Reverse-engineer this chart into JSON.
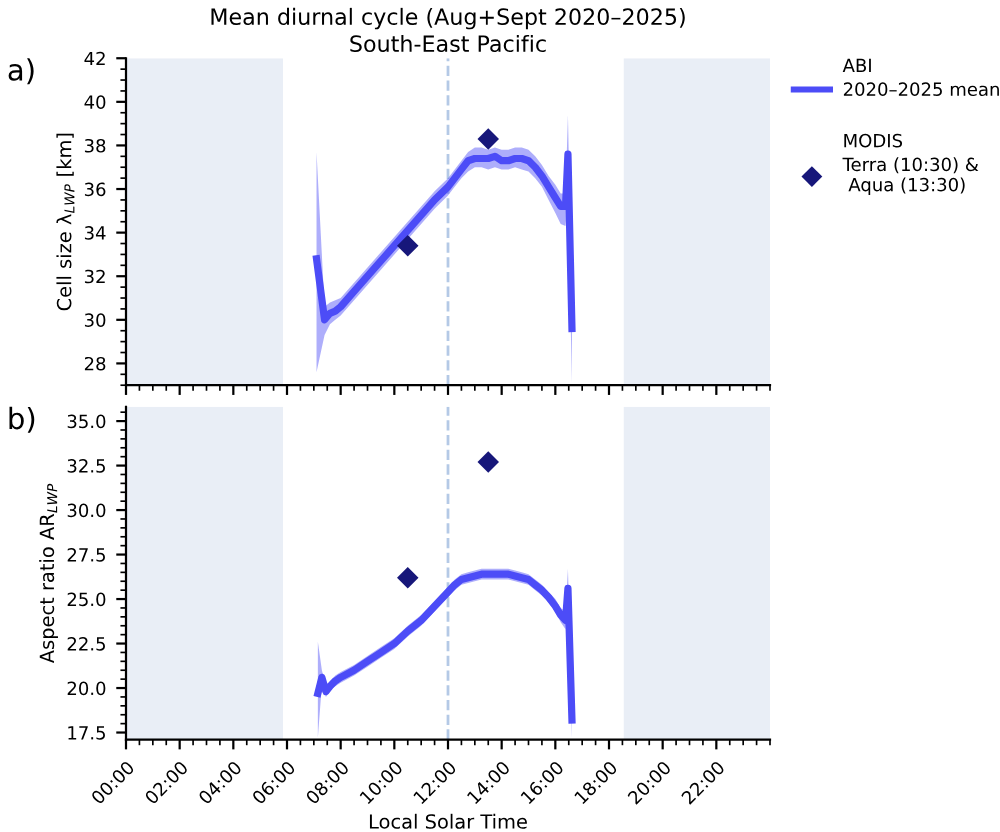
{
  "chart_data": [
    {
      "type": "line",
      "title": "Mean diurnal cycle (Aug+Sept 2020–2025)",
      "subtitle": "South-East Pacific",
      "ylabel": "Cell size λ$_{LWP}$ [km]",
      "annotations": [
        "a)",
        "ABI",
        "MODIS"
      ],
      "xlim": [
        0,
        24
      ],
      "xticks": [
        {
          "value": 0,
          "label": null
        },
        {
          "value": 2,
          "label": null
        },
        {
          "value": 4,
          "label": null
        },
        {
          "value": 6,
          "label": null
        },
        {
          "value": 8,
          "label": null
        },
        {
          "value": 10,
          "label": null
        },
        {
          "value": 12,
          "label": null
        },
        {
          "value": 14,
          "label": null
        },
        {
          "value": 16,
          "label": null
        },
        {
          "value": 18,
          "label": null
        },
        {
          "value": 20,
          "label": null
        },
        {
          "value": 22,
          "label": null
        }
      ],
      "ylim": [
        27,
        42
      ],
      "yticks": [
        28,
        30,
        32,
        34,
        36,
        38,
        40,
        42
      ],
      "tick_labels": "y",
      "legend": "right",
      "bands": [
        {
          "axis": "x",
          "from": 0,
          "to": 5.85,
          "color": "#e9eef6"
        },
        {
          "axis": "x",
          "from": 18.55,
          "to": 24,
          "color": "#e9eef6"
        }
      ],
      "ref_lines": [
        {
          "axis": "x",
          "value": 12,
          "color": "#b4c9e6",
          "line_style": "dashed"
        }
      ],
      "series": [
        {
          "name": "2020–2025 mean",
          "color": "#4c4cf7",
          "x": [
            7.1,
            7.4,
            7.6,
            7.8,
            8.0,
            8.5,
            9.0,
            9.5,
            10.0,
            10.5,
            11.0,
            11.5,
            12.0,
            12.25,
            12.5,
            12.75,
            13.0,
            13.25,
            13.5,
            13.75,
            14.0,
            14.25,
            14.5,
            14.75,
            15.0,
            15.25,
            15.5,
            15.75,
            16.0,
            16.2,
            16.38,
            16.47,
            16.62
          ],
          "values": [
            32.8,
            30.0,
            30.3,
            30.4,
            30.6,
            31.3,
            32.0,
            32.7,
            33.4,
            34.1,
            34.8,
            35.5,
            36.1,
            36.5,
            36.9,
            37.3,
            37.4,
            37.4,
            37.4,
            37.5,
            37.3,
            37.3,
            37.4,
            37.4,
            37.3,
            37.0,
            36.6,
            36.1,
            35.6,
            35.2,
            35.2,
            37.6,
            29.6
          ],
          "lower": [
            27.6,
            29.3,
            29.8,
            30.0,
            30.2,
            30.9,
            31.6,
            32.3,
            33.0,
            33.7,
            34.4,
            35.1,
            35.7,
            36.1,
            36.5,
            36.8,
            37.0,
            37.0,
            36.9,
            37.0,
            36.9,
            36.9,
            37.0,
            36.9,
            36.8,
            36.5,
            36.1,
            35.5,
            34.9,
            34.4,
            34.3,
            35.5,
            27.1
          ],
          "upper": [
            37.7,
            30.6,
            30.8,
            30.9,
            31.0,
            31.7,
            32.4,
            33.1,
            33.8,
            34.5,
            35.2,
            35.9,
            36.5,
            36.9,
            37.3,
            37.7,
            37.9,
            37.9,
            37.8,
            37.9,
            37.8,
            37.8,
            37.9,
            37.9,
            37.8,
            37.5,
            37.1,
            36.6,
            36.2,
            35.8,
            35.8,
            39.4,
            30.2
          ]
        },
        {
          "name": "Terra (10:30) &\n Aqua (13:30)",
          "type": "scatter",
          "color": "#17177a",
          "marker": "diamond",
          "x": [
            10.5,
            13.5
          ],
          "values": [
            33.4,
            38.3
          ]
        }
      ]
    },
    {
      "type": "line",
      "xlabel": "Local Solar Time",
      "ylabel": "Aspect ratio AR$_{LWP}$",
      "annotations": [
        "b)"
      ],
      "xlim": [
        0,
        24
      ],
      "xticks": [
        {
          "value": 0,
          "label": "00:00"
        },
        {
          "value": 2,
          "label": "02:00"
        },
        {
          "value": 4,
          "label": "04:00"
        },
        {
          "value": 6,
          "label": "06:00"
        },
        {
          "value": 8,
          "label": "08:00"
        },
        {
          "value": 10,
          "label": "10:00"
        },
        {
          "value": 12,
          "label": "12:00"
        },
        {
          "value": 14,
          "label": "14:00"
        },
        {
          "value": 16,
          "label": "16:00"
        },
        {
          "value": 18,
          "label": "18:00"
        },
        {
          "value": 20,
          "label": "20:00"
        },
        {
          "value": 22,
          "label": "22:00"
        }
      ],
      "ylim": [
        17.1,
        35.8
      ],
      "yticks": [
        17.5,
        {
          "value": 20,
          "label": "20.0"
        },
        22.5,
        {
          "value": 25,
          "label": "25.0"
        },
        27.5,
        {
          "value": 30,
          "label": "30.0"
        },
        32.5,
        {
          "value": 35,
          "label": "35.0"
        }
      ],
      "bands": [
        {
          "axis": "x",
          "from": 0,
          "to": 5.85,
          "color": "#e9eef6"
        },
        {
          "axis": "x",
          "from": 18.55,
          "to": 24,
          "color": "#e9eef6"
        }
      ],
      "ref_lines": [
        {
          "axis": "x",
          "value": 12,
          "color": "#b4c9e6",
          "line_style": "dashed"
        }
      ],
      "series": [
        {
          "color": "#4c4cf7",
          "x": [
            7.15,
            7.3,
            7.45,
            7.6,
            7.8,
            8.0,
            8.5,
            9.0,
            9.5,
            10.0,
            10.5,
            11.0,
            11.5,
            12.0,
            12.25,
            12.5,
            12.75,
            13.0,
            13.25,
            13.5,
            13.75,
            14.0,
            14.25,
            14.5,
            14.75,
            15.0,
            15.25,
            15.5,
            15.75,
            16.0,
            16.2,
            16.38,
            16.47,
            16.62
          ],
          "values": [
            19.7,
            20.6,
            19.8,
            20.1,
            20.4,
            20.6,
            21.0,
            21.5,
            22.0,
            22.5,
            23.2,
            23.8,
            24.6,
            25.4,
            25.8,
            26.1,
            26.2,
            26.3,
            26.4,
            26.4,
            26.4,
            26.4,
            26.4,
            26.3,
            26.2,
            26.1,
            25.8,
            25.5,
            25.1,
            24.6,
            24.1,
            23.8,
            25.6,
            18.2
          ],
          "lower": [
            17.2,
            20.2,
            19.5,
            19.8,
            20.1,
            20.3,
            20.7,
            21.2,
            21.7,
            22.2,
            22.9,
            23.5,
            24.3,
            25.1,
            25.5,
            25.8,
            25.9,
            26.0,
            26.1,
            26.1,
            26.1,
            26.1,
            26.1,
            26.0,
            25.9,
            25.8,
            25.5,
            25.2,
            24.8,
            24.3,
            23.7,
            23.3,
            24.4,
            17.2
          ],
          "upper": [
            22.6,
            21.0,
            20.1,
            20.4,
            20.7,
            20.9,
            21.3,
            21.8,
            22.3,
            22.8,
            23.5,
            24.1,
            24.9,
            25.7,
            26.1,
            26.4,
            26.5,
            26.6,
            26.7,
            26.7,
            26.7,
            26.7,
            26.7,
            26.6,
            26.5,
            26.4,
            26.1,
            25.8,
            25.4,
            25.0,
            24.5,
            24.3,
            26.7,
            18.6
          ]
        },
        {
          "type": "scatter",
          "color": "#17177a",
          "marker": "diamond",
          "x": [
            10.5,
            13.5
          ],
          "values": [
            26.2,
            32.7
          ]
        }
      ]
    }
  ]
}
